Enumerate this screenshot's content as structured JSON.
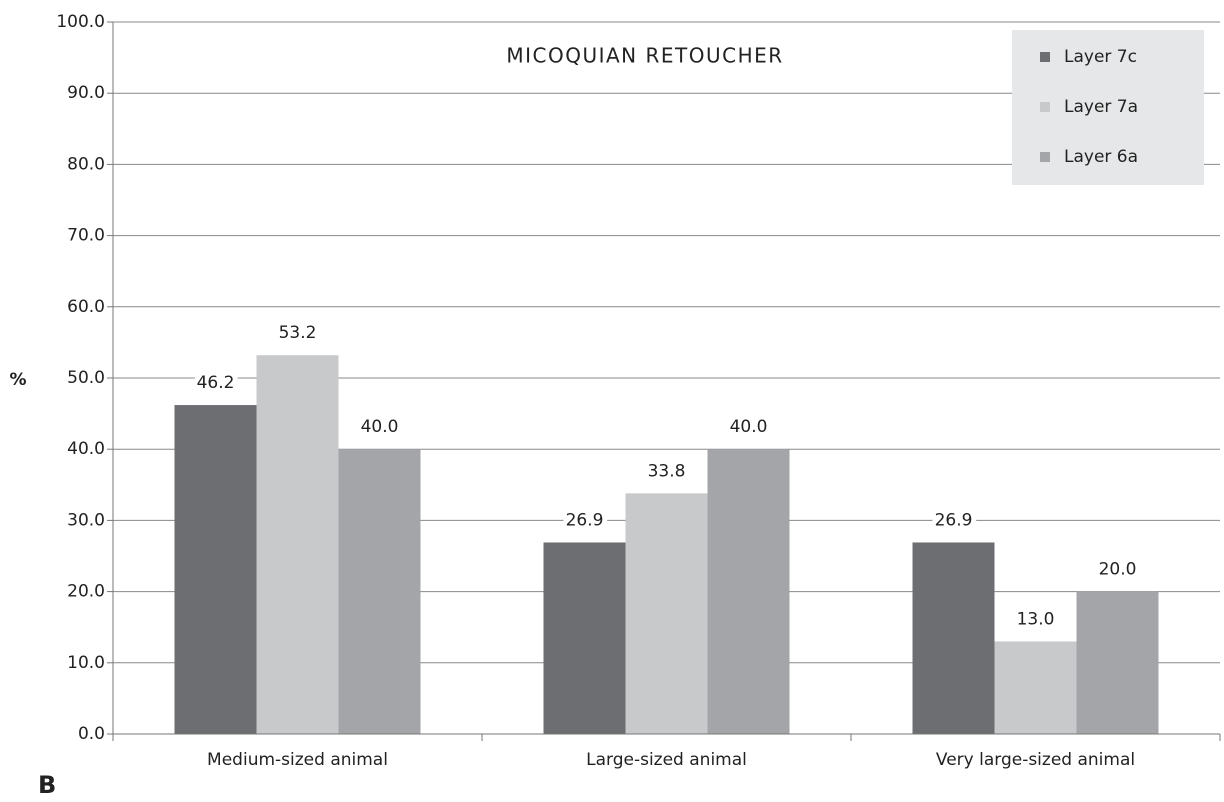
{
  "chart_data": {
    "type": "bar",
    "title": "MICOQUIAN RETOUCHER",
    "y_label": "%",
    "panel_label": "B",
    "categories": [
      "Medium-sized animal",
      "Large-sized animal",
      "Very large-sized animal"
    ],
    "series": [
      {
        "name": "Layer 7c",
        "color": "#6d6e71",
        "values": [
          46.2,
          26.9,
          26.9
        ],
        "value_labels": [
          "46.2",
          "26.9",
          "26.9"
        ]
      },
      {
        "name": "Layer 7a",
        "color": "#c8c9cb",
        "values": [
          53.2,
          33.8,
          13.0
        ],
        "value_labels": [
          "53.2",
          "33.8",
          "13.0"
        ]
      },
      {
        "name": "Layer 6a",
        "color": "#a4a5a8",
        "values": [
          40.0,
          40.0,
          20.0
        ],
        "value_labels": [
          "40.0",
          "40.0",
          "20.0"
        ]
      }
    ],
    "ylim": [
      0,
      100
    ],
    "yticks": [
      {
        "value": 0,
        "label": "0.0"
      },
      {
        "value": 10,
        "label": "10.0"
      },
      {
        "value": 20,
        "label": "20.0"
      },
      {
        "value": 30,
        "label": "30.0"
      },
      {
        "value": 40,
        "label": "40.0"
      },
      {
        "value": 50,
        "label": "50.0"
      },
      {
        "value": 60,
        "label": "60.0"
      },
      {
        "value": 70,
        "label": "70.0"
      },
      {
        "value": 80,
        "label": "80.0"
      },
      {
        "value": 90,
        "label": "90.0"
      },
      {
        "value": 100,
        "label": "100.0"
      }
    ],
    "grid": true,
    "legend": "upper right"
  }
}
